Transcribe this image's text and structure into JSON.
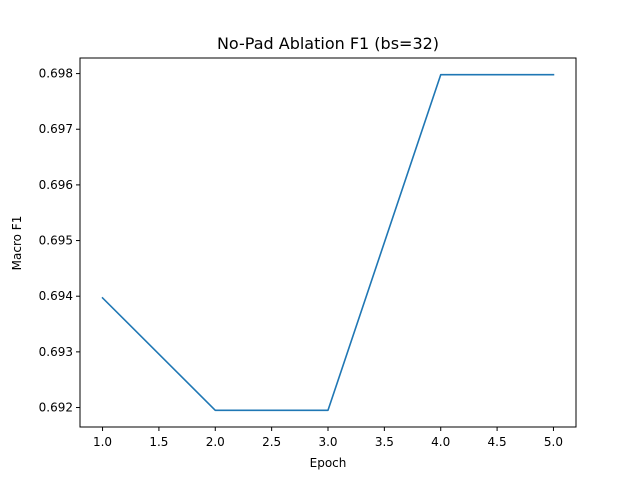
{
  "chart_data": {
    "type": "line",
    "title": "No-Pad Ablation F1 (bs=32)",
    "xlabel": "Epoch",
    "ylabel": "Macro F1",
    "x": [
      1,
      2,
      3,
      4,
      5
    ],
    "series": [
      {
        "values": [
          0.69397,
          0.69195,
          0.69195,
          0.69798,
          0.69798
        ],
        "color": "#1f77b4"
      }
    ],
    "xlim": [
      0.8,
      5.2
    ],
    "ylim": [
      0.69165,
      0.69828
    ],
    "xticks": [
      1.0,
      1.5,
      2.0,
      2.5,
      3.0,
      3.5,
      4.0,
      4.5,
      5.0
    ],
    "xtick_labels": [
      "1.0",
      "1.5",
      "2.0",
      "2.5",
      "3.0",
      "3.5",
      "4.0",
      "4.5",
      "5.0"
    ],
    "yticks": [
      0.692,
      0.693,
      0.694,
      0.695,
      0.696,
      0.697,
      0.698
    ],
    "ytick_labels": [
      "0.692",
      "0.693",
      "0.694",
      "0.695",
      "0.696",
      "0.697",
      "0.698"
    ],
    "grid": false,
    "legend": false
  }
}
